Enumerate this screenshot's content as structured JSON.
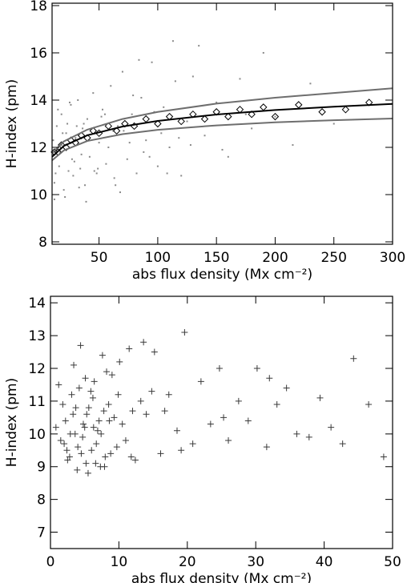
{
  "chart_data": [
    {
      "type": "scatter",
      "ylabel": "H-index (pm)",
      "xlabel": "abs flux density (Mx cm⁻²)",
      "xlim": [
        10,
        300
      ],
      "ylim": [
        7.9,
        18.1
      ],
      "xticks": [
        50,
        100,
        150,
        200,
        250,
        300
      ],
      "yticks": [
        8,
        10,
        12,
        14,
        16,
        18
      ],
      "series": [
        {
          "marker": "dot",
          "color": "#8a8a8a",
          "x": [
            12,
            14,
            16,
            18,
            20,
            22,
            24,
            26,
            28,
            30,
            32,
            34,
            36,
            38,
            40,
            42,
            45,
            48,
            50,
            53,
            56,
            60,
            63,
            66,
            70,
            74,
            78,
            82,
            86,
            90,
            95,
            100,
            105,
            110,
            115,
            120,
            125,
            130,
            140,
            150,
            160,
            170,
            180,
            190,
            200,
            215,
            230,
            250,
            12,
            15,
            18,
            21,
            25,
            29,
            33,
            37,
            41,
            46,
            52,
            58,
            64,
            71,
            79,
            88,
            97,
            108,
            118,
            135,
            155,
            175,
            11,
            13,
            17,
            19,
            23,
            27,
            31,
            35,
            39,
            44,
            49,
            55,
            62,
            68,
            76,
            84,
            93,
            103,
            113,
            128
          ],
          "values": [
            10.5,
            12.9,
            11.2,
            13.4,
            10.2,
            12.6,
            11.0,
            13.8,
            10.8,
            12.4,
            14.0,
            11.1,
            12.8,
            10.4,
            13.2,
            11.6,
            14.3,
            10.9,
            12.2,
            13.6,
            11.3,
            14.6,
            10.7,
            12.9,
            15.2,
            11.5,
            13.4,
            10.9,
            14.1,
            12.3,
            15.6,
            11.2,
            13.7,
            12.0,
            14.8,
            10.8,
            13.1,
            15.0,
            12.5,
            13.9,
            11.6,
            14.9,
            12.8,
            16.0,
            13.3,
            12.1,
            14.7,
            13.0,
            9.8,
            13.6,
            12.1,
            9.9,
            13.9,
            11.4,
            10.3,
            13.0,
            12.3,
            11.0,
            13.3,
            12.0,
            10.4,
            12.7,
            14.2,
            11.8,
            13.5,
            10.9,
            12.4,
            16.3,
            11.9,
            13.4,
            12.3,
            10.9,
            11.8,
            12.6,
            13.0,
            11.5,
            12.9,
            11.7,
            9.7,
            12.8,
            11.1,
            13.4,
            12.7,
            10.1,
            12.2,
            15.7,
            11.6,
            12.6,
            16.5,
            12.1
          ]
        },
        {
          "marker": "diamond",
          "color": "#000000",
          "x": [
            12,
            15,
            18,
            22,
            26,
            30,
            35,
            40,
            45,
            50,
            58,
            65,
            72,
            80,
            90,
            100,
            110,
            120,
            130,
            140,
            150,
            160,
            170,
            180,
            190,
            200,
            220,
            240,
            260,
            280
          ],
          "values": [
            11.8,
            11.8,
            12.1,
            12.0,
            12.3,
            12.2,
            12.5,
            12.4,
            12.7,
            12.6,
            12.9,
            12.7,
            13.0,
            12.9,
            13.2,
            13.0,
            13.3,
            13.1,
            13.4,
            13.2,
            13.5,
            13.3,
            13.6,
            13.4,
            13.7,
            13.3,
            13.8,
            13.5,
            13.6,
            13.9
          ]
        },
        {
          "marker": "line",
          "color": "#6e6e6e",
          "x": [
            10,
            20,
            40,
            70,
            100,
            150,
            200,
            250,
            300
          ],
          "values": [
            11.75,
            12.25,
            12.75,
            13.2,
            13.5,
            13.85,
            14.1,
            14.3,
            14.5
          ]
        },
        {
          "marker": "line",
          "color": "#6e6e6e",
          "x": [
            10,
            20,
            40,
            70,
            100,
            150,
            200,
            250,
            300
          ],
          "values": [
            11.45,
            11.87,
            12.27,
            12.56,
            12.74,
            12.93,
            13.06,
            13.15,
            13.22
          ]
        },
        {
          "marker": "line",
          "color": "#000000",
          "x": [
            10,
            20,
            40,
            70,
            100,
            150,
            200,
            250,
            300
          ],
          "values": [
            11.6,
            12.06,
            12.51,
            12.88,
            13.12,
            13.39,
            13.58,
            13.72,
            13.84
          ]
        }
      ]
    },
    {
      "type": "scatter",
      "ylabel": "H-index (pm)",
      "xlabel": "abs flux density (Mx cm⁻²)",
      "xlim": [
        0,
        50
      ],
      "ylim": [
        6.5,
        14.2
      ],
      "xticks": [
        0,
        10,
        20,
        30,
        40,
        50
      ],
      "yticks": [
        7,
        8,
        9,
        10,
        11,
        12,
        13,
        14
      ],
      "series": [
        {
          "marker": "plus",
          "color": "#3a3a3a",
          "x": [
            1.5,
            2.2,
            2.8,
            3.1,
            3.6,
            4.0,
            4.4,
            4.8,
            5.2,
            5.6,
            6.0,
            6.4,
            6.9,
            7.3,
            7.8,
            8.2,
            8.8,
            9.3,
            10.1,
            11.0,
            1.8,
            2.5,
            3.3,
            3.9,
            4.2,
            4.7,
            5.0,
            5.5,
            6.2,
            6.7,
            7.1,
            7.6,
            8.0,
            8.5,
            9.0,
            9.7,
            10.5,
            11.5,
            12.4,
            13.2,
            0.8,
            1.2,
            2.0,
            2.9,
            3.4,
            4.5,
            5.3,
            5.9,
            6.6,
            7.4,
            14.0,
            15.2,
            16.1,
            17.3,
            18.5,
            19.6,
            20.8,
            22.0,
            23.4,
            24.7,
            26.0,
            27.5,
            28.9,
            30.2,
            31.6,
            33.1,
            34.5,
            36.0,
            37.8,
            39.4,
            41.0,
            42.7,
            44.3,
            46.5,
            48.7,
            12.0,
            14.8,
            19.1,
            25.3,
            32.0,
            2.4,
            3.7,
            5.1,
            6.3,
            7.9,
            8.6,
            9.9,
            11.8,
            13.6,
            16.7
          ],
          "values": [
            9.8,
            10.4,
            9.3,
            11.2,
            10.0,
            9.6,
            12.7,
            10.3,
            9.1,
            10.8,
            9.5,
            11.6,
            10.1,
            9.0,
            10.7,
            11.9,
            9.4,
            10.5,
            12.2,
            9.8,
            10.9,
            9.2,
            10.6,
            8.9,
            11.4,
            9.9,
            10.2,
            8.8,
            11.1,
            9.7,
            10.4,
            12.4,
            9.3,
            10.9,
            11.8,
            9.6,
            10.3,
            12.6,
            9.2,
            11.0,
            10.2,
            11.5,
            9.7,
            10.0,
            12.1,
            9.4,
            10.6,
            11.3,
            9.1,
            10.0,
            10.6,
            12.5,
            9.4,
            11.2,
            10.1,
            13.1,
            9.7,
            11.6,
            10.3,
            12.0,
            9.8,
            11.0,
            10.4,
            12.0,
            9.6,
            10.9,
            11.4,
            10.0,
            9.9,
            11.1,
            10.2,
            9.7,
            12.3,
            10.9,
            9.3,
            10.7,
            11.3,
            9.5,
            10.5,
            11.7,
            9.5,
            10.8,
            11.7,
            10.2,
            9.0,
            10.4,
            11.2,
            9.3,
            12.8,
            10.7
          ]
        }
      ]
    }
  ]
}
